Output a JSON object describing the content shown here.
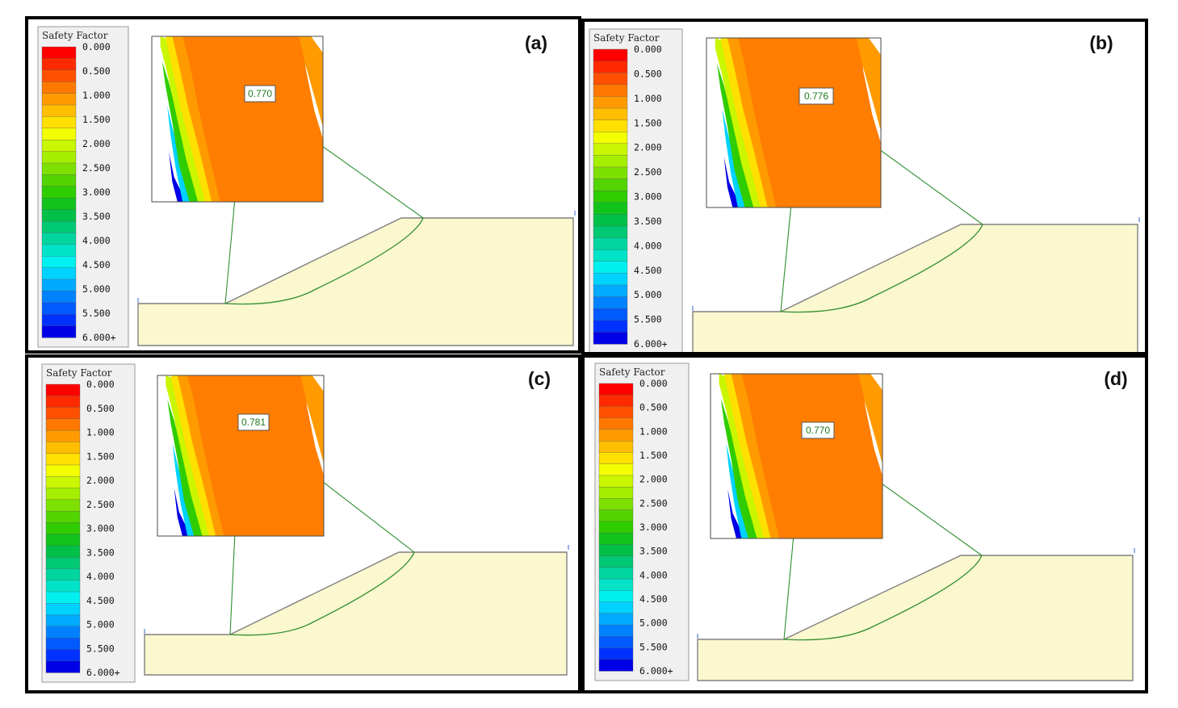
{
  "legend": {
    "title": "Safety Factor",
    "ticks": [
      "0.000",
      "0.500",
      "1.000",
      "1.500",
      "2.000",
      "2.500",
      "3.000",
      "3.500",
      "4.000",
      "4.500",
      "5.000",
      "5.500",
      "6.000+"
    ],
    "colors": [
      "#ff0000",
      "#ff2a00",
      "#ff5000",
      "#ff7800",
      "#ff9b00",
      "#ffbe00",
      "#ffe000",
      "#f3ff00",
      "#c9f600",
      "#a6ee00",
      "#7ee000",
      "#53d400",
      "#2fcc00",
      "#12c31c",
      "#00c048",
      "#00c873",
      "#00d5a0",
      "#00e3c8",
      "#00f0f0",
      "#00d2ff",
      "#00aaff",
      "#0082ff",
      "#005aff",
      "#0032ff",
      "#0000e6"
    ]
  },
  "panels": [
    {
      "label": "(a)",
      "factor": "0.770"
    },
    {
      "label": "(b)",
      "factor": "0.776"
    },
    {
      "label": "(c)",
      "factor": "0.781"
    },
    {
      "label": "(d)",
      "factor": "0.770"
    }
  ],
  "colors": {
    "slope_fill": "#fbf7cf",
    "slope_edge": "#808080",
    "critical_surface": "#2f8f2f",
    "contour_orange": "#ff7d00",
    "frame": "#000000",
    "legend_bg": "#f0f0f0"
  }
}
